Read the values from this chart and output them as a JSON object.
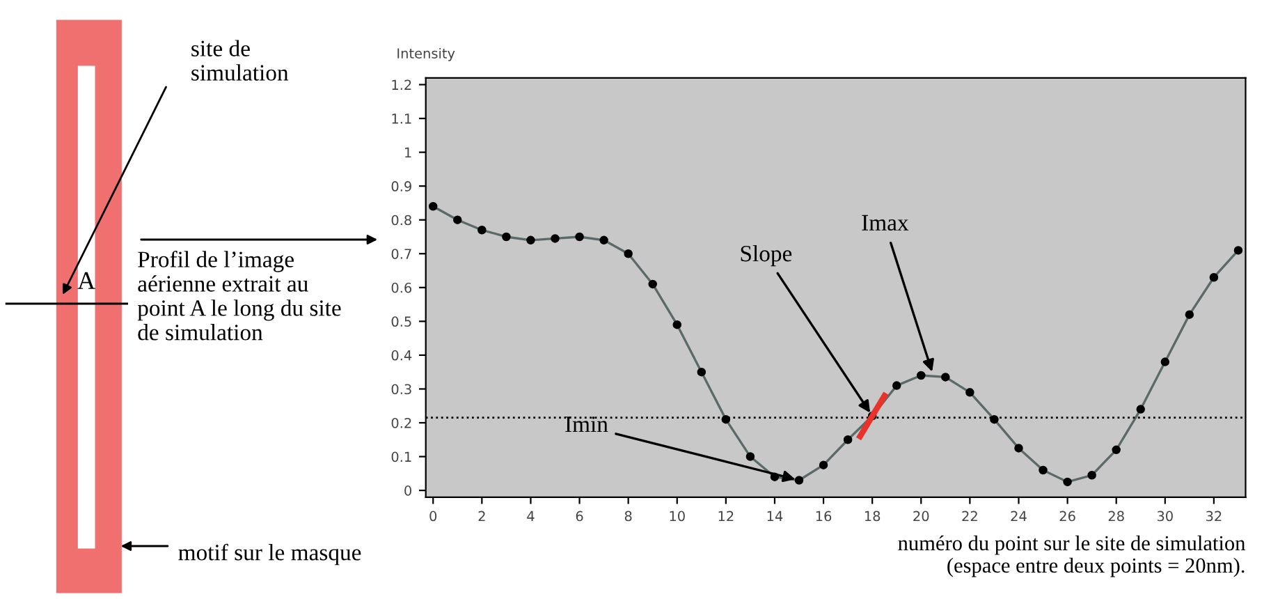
{
  "chart_data": {
    "type": "line",
    "ylabel": "Intensity",
    "xlabel": "numéro du point sur le site de simulation\n(espace entre deux points = 20nm).",
    "x": [
      0,
      1,
      2,
      3,
      4,
      5,
      6,
      7,
      8,
      9,
      10,
      11,
      12,
      13,
      14,
      15,
      16,
      17,
      18,
      19,
      20,
      21,
      22,
      23,
      24,
      25,
      26,
      27,
      28,
      29,
      30,
      31,
      32,
      33
    ],
    "series": [
      {
        "color": "#5a6a6a",
        "values": [
          0.84,
          0.8,
          0.77,
          0.75,
          0.74,
          0.745,
          0.75,
          0.74,
          0.7,
          0.61,
          0.49,
          0.35,
          0.21,
          0.1,
          0.04,
          0.03,
          0.075,
          0.15,
          0.22,
          0.31,
          0.34,
          0.335,
          0.29,
          0.21,
          0.125,
          0.06,
          0.025,
          0.045,
          0.12,
          0.24,
          0.38,
          0.52,
          0.63,
          0.71
        ]
      }
    ],
    "marker": "circle",
    "line_style": "solid",
    "xlim": [
      -0.3,
      33.3
    ],
    "xticks": [
      0,
      2,
      4,
      6,
      8,
      10,
      12,
      14,
      16,
      18,
      20,
      22,
      24,
      26,
      28,
      30,
      32
    ],
    "ylim": [
      -0.02,
      1.22
    ],
    "yticks": [
      0,
      0.1,
      0.2,
      0.3,
      0.4,
      0.5,
      0.6,
      0.7,
      0.8,
      0.9,
      1,
      1.1,
      1.2
    ],
    "ref_lines": [
      {
        "axis": "y",
        "value": 0.215,
        "line_style": "dotted",
        "color": "#000000"
      }
    ],
    "annotations": [
      {
        "text": "Imin",
        "x": 15,
        "y": 0.03
      },
      {
        "text": "Slope",
        "x": 18,
        "y": 0.22
      },
      {
        "text": "Imax",
        "x": 20.5,
        "y": 0.34
      },
      "site de simulation",
      "A",
      "Profil de l’image aérienne extrait au point A le long du site de simulation",
      "motif sur le masque"
    ],
    "grid": false,
    "legend": false
  }
}
